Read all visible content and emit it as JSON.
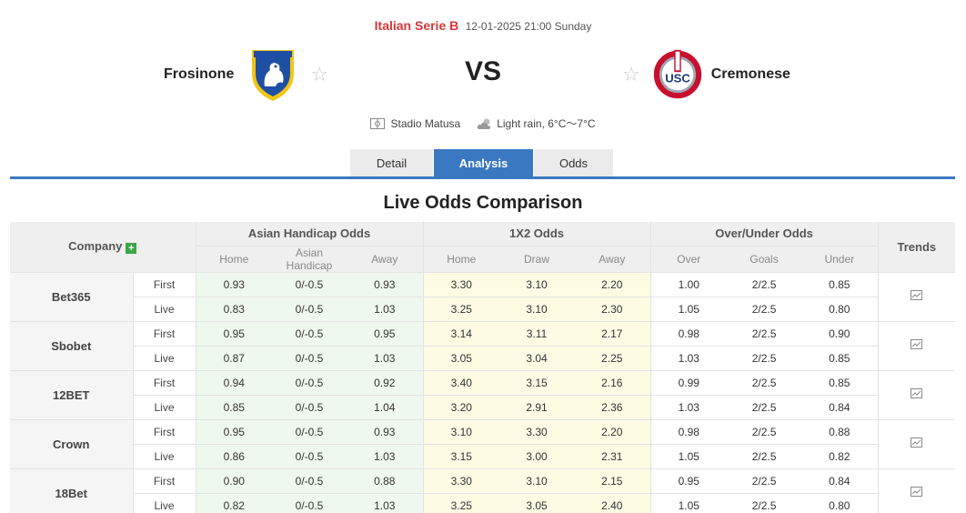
{
  "header": {
    "league": "Italian Serie B",
    "datetime": "12-01-2025 21:00 Sunday",
    "home_team": "Frosinone",
    "away_team": "Cremonese",
    "vs": "VS",
    "venue": "Stadio Matusa",
    "weather": "Light rain, 6°C～7°C"
  },
  "tabs": [
    {
      "label": "Detail",
      "active": false
    },
    {
      "label": "Analysis",
      "active": true
    },
    {
      "label": "Odds",
      "active": false
    }
  ],
  "section_title": "Live Odds Comparison",
  "table": {
    "company_header": "Company",
    "trends_header": "Trends",
    "groups": [
      "Asian Handicap Odds",
      "1X2 Odds",
      "Over/Under Odds"
    ],
    "subheaders": {
      "ah": [
        "Home",
        "Asian Handicap",
        "Away"
      ],
      "x12": [
        "Home",
        "Draw",
        "Away"
      ],
      "ou": [
        "Over",
        "Goals",
        "Under"
      ]
    },
    "companies": [
      {
        "name": "Bet365",
        "rows": [
          {
            "type": "First",
            "ah": [
              "0.93",
              "0/-0.5",
              "0.93"
            ],
            "x12": [
              "3.30",
              "3.10",
              "2.20"
            ],
            "ou": [
              "1.00",
              "2/2.5",
              "0.85"
            ]
          },
          {
            "type": "Live",
            "ah": [
              "0.83",
              "0/-0.5",
              "1.03"
            ],
            "x12": [
              "3.25",
              "3.10",
              "2.30"
            ],
            "ou": [
              "1.05",
              "2/2.5",
              "0.80"
            ]
          }
        ]
      },
      {
        "name": "Sbobet",
        "rows": [
          {
            "type": "First",
            "ah": [
              "0.95",
              "0/-0.5",
              "0.95"
            ],
            "x12": [
              "3.14",
              "3.11",
              "2.17"
            ],
            "ou": [
              "0.98",
              "2/2.5",
              "0.90"
            ]
          },
          {
            "type": "Live",
            "ah": [
              "0.87",
              "0/-0.5",
              "1.03"
            ],
            "x12": [
              "3.05",
              "3.04",
              "2.25"
            ],
            "ou": [
              "1.03",
              "2/2.5",
              "0.85"
            ]
          }
        ]
      },
      {
        "name": "12BET",
        "rows": [
          {
            "type": "First",
            "ah": [
              "0.94",
              "0/-0.5",
              "0.92"
            ],
            "x12": [
              "3.40",
              "3.15",
              "2.16"
            ],
            "ou": [
              "0.99",
              "2/2.5",
              "0.85"
            ]
          },
          {
            "type": "Live",
            "ah": [
              "0.85",
              "0/-0.5",
              "1.04"
            ],
            "x12": [
              "3.20",
              "2.91",
              "2.36"
            ],
            "ou": [
              "1.03",
              "2/2.5",
              "0.84"
            ]
          }
        ]
      },
      {
        "name": "Crown",
        "rows": [
          {
            "type": "First",
            "ah": [
              "0.95",
              "0/-0.5",
              "0.93"
            ],
            "x12": [
              "3.10",
              "3.30",
              "2.20"
            ],
            "ou": [
              "0.98",
              "2/2.5",
              "0.88"
            ]
          },
          {
            "type": "Live",
            "ah": [
              "0.86",
              "0/-0.5",
              "1.03"
            ],
            "x12": [
              "3.15",
              "3.00",
              "2.31"
            ],
            "ou": [
              "1.05",
              "2/2.5",
              "0.82"
            ]
          }
        ]
      },
      {
        "name": "18Bet",
        "rows": [
          {
            "type": "First",
            "ah": [
              "0.90",
              "0/-0.5",
              "0.88"
            ],
            "x12": [
              "3.30",
              "3.10",
              "2.15"
            ],
            "ou": [
              "0.95",
              "2/2.5",
              "0.84"
            ]
          },
          {
            "type": "Live",
            "ah": [
              "0.82",
              "0/-0.5",
              "1.03"
            ],
            "x12": [
              "3.25",
              "3.05",
              "2.40"
            ],
            "ou": [
              "1.05",
              "2/2.5",
              "0.80"
            ]
          }
        ]
      }
    ]
  },
  "colors": {
    "accent_blue": "#3a78c2",
    "league_red": "#d9353a",
    "ah_bg": "#eef8ee",
    "x12_bg": "#fdfbe4",
    "add_green": "#3aa844"
  },
  "icons": {
    "home_logo": "frosinone-crest-icon",
    "away_logo": "cremonese-crest-icon",
    "favorite": "star-outline-icon",
    "venue": "stadium-icon",
    "weather": "cloud-sun-icon",
    "add": "plus-icon",
    "trends": "line-chart-icon"
  }
}
